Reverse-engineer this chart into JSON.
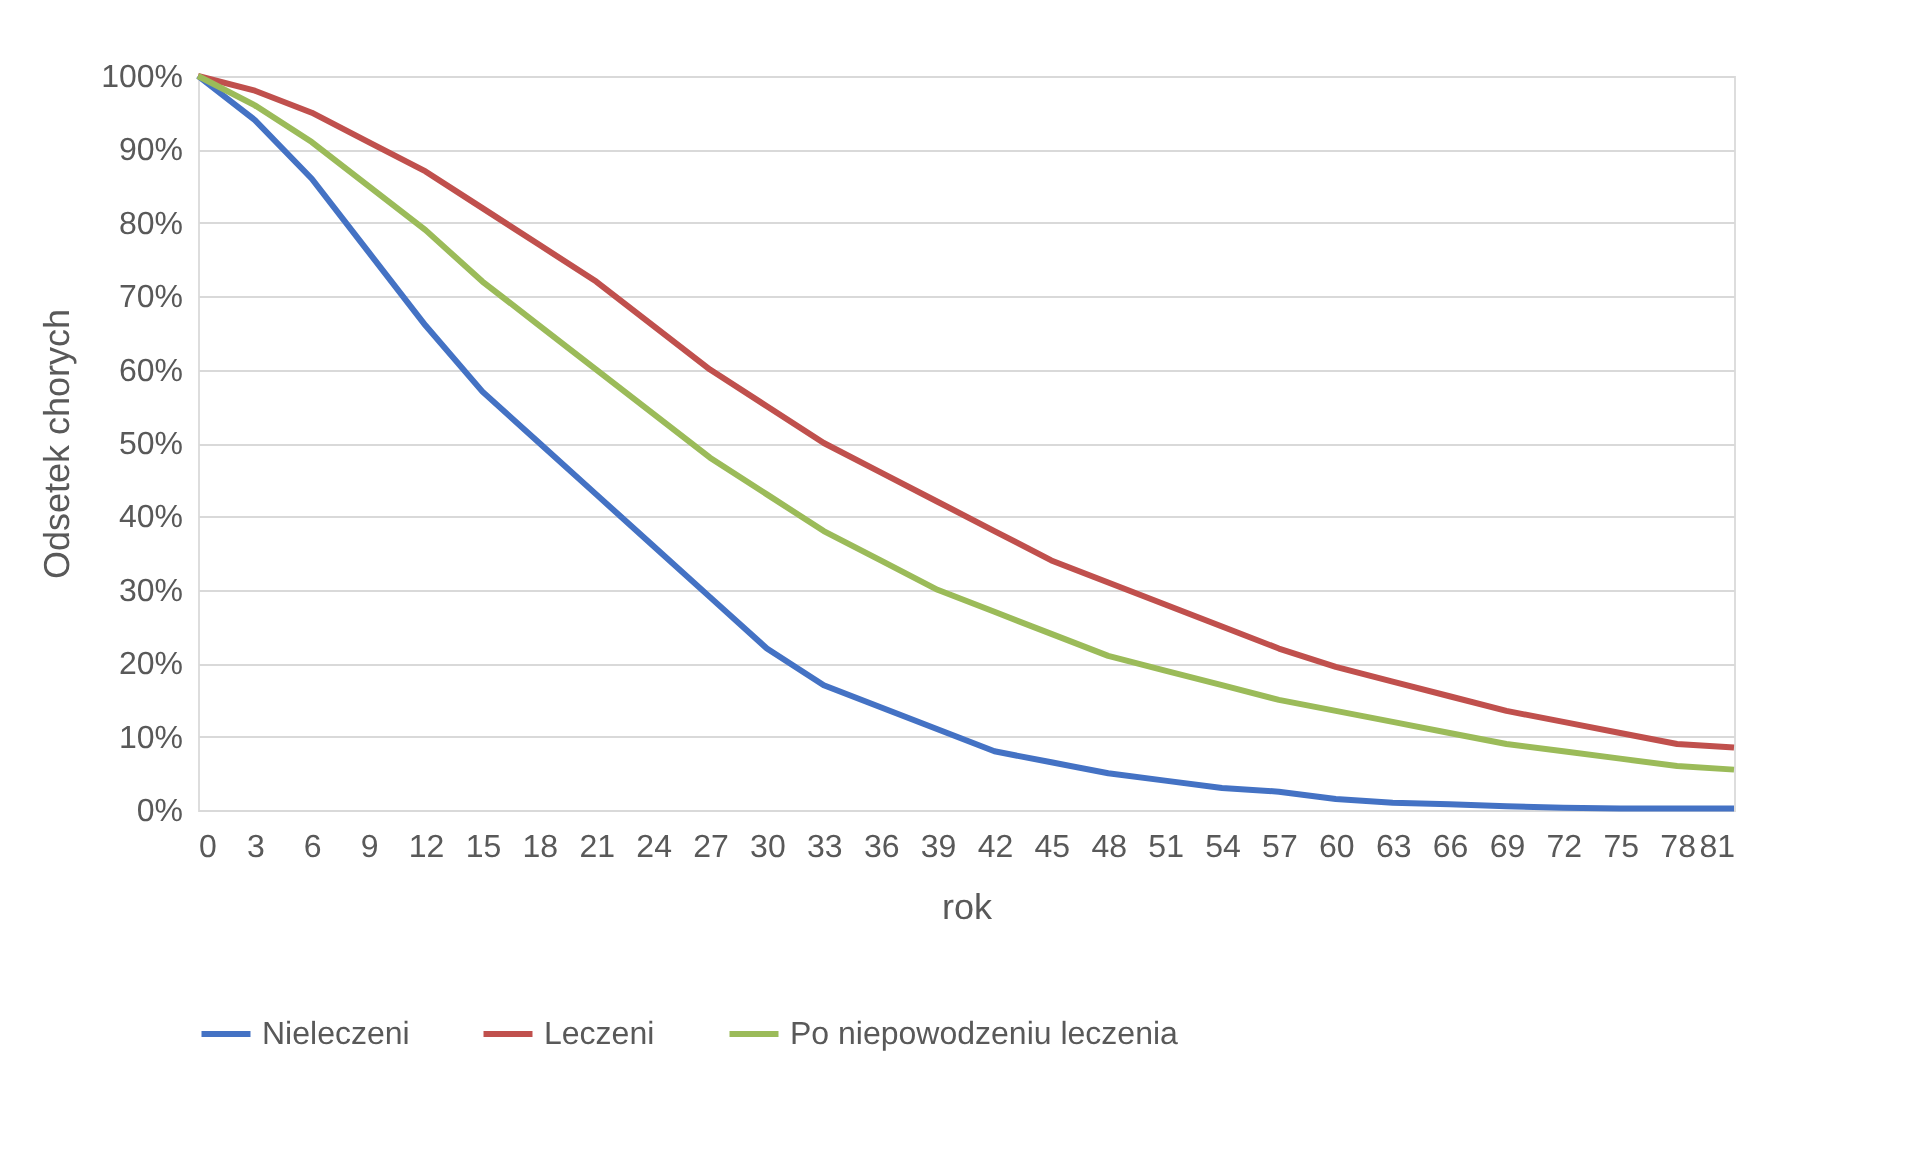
{
  "chart_data": {
    "type": "line",
    "xlabel": "rok",
    "ylabel": "Odsetek chorych",
    "x": [
      0,
      3,
      6,
      9,
      12,
      15,
      18,
      21,
      24,
      27,
      30,
      33,
      36,
      39,
      42,
      45,
      48,
      51,
      54,
      57,
      60,
      63,
      66,
      69,
      72,
      75,
      78,
      81
    ],
    "xlim": [
      0,
      81
    ],
    "xticks": [
      0,
      3,
      6,
      9,
      12,
      15,
      18,
      21,
      24,
      27,
      30,
      33,
      36,
      39,
      42,
      45,
      48,
      51,
      54,
      57,
      60,
      63,
      66,
      69,
      72,
      75,
      78,
      81
    ],
    "ylim": [
      0,
      100
    ],
    "yticks": [
      {
        "value": 0,
        "label": "0%"
      },
      {
        "value": 10,
        "label": "10%"
      },
      {
        "value": 20,
        "label": "20%"
      },
      {
        "value": 30,
        "label": "30%"
      },
      {
        "value": 40,
        "label": "40%"
      },
      {
        "value": 50,
        "label": "50%"
      },
      {
        "value": 60,
        "label": "60%"
      },
      {
        "value": 70,
        "label": "70%"
      },
      {
        "value": 80,
        "label": "80%"
      },
      {
        "value": 90,
        "label": "90%"
      },
      {
        "value": 100,
        "label": "100%"
      }
    ],
    "grid": "y",
    "legend": "bottom",
    "marker": "none",
    "line_style": "solid",
    "series": [
      {
        "name": "Nieleczeni",
        "color": "#4472c4",
        "values": [
          100,
          94,
          86,
          76,
          66,
          57,
          50,
          43,
          36,
          29,
          22,
          17,
          14,
          11,
          8,
          6.5,
          5,
          4,
          3,
          2.5,
          1.5,
          1,
          0.8,
          0.5,
          0.3,
          0.2,
          0.2,
          0.2
        ]
      },
      {
        "name": "Leczeni",
        "color": "#c0504d",
        "values": [
          100,
          98,
          95,
          91,
          87,
          82,
          77,
          72,
          66,
          60,
          55,
          50,
          46,
          42,
          38,
          34,
          31,
          28,
          25,
          22,
          19.5,
          17.5,
          15.5,
          13.5,
          12,
          10.5,
          9,
          8.5
        ]
      },
      {
        "name": "Po niepowodzeniu leczenia",
        "color": "#9bbb59",
        "values": [
          100,
          96,
          91,
          85,
          79,
          72,
          66,
          60,
          54,
          48,
          43,
          38,
          34,
          30,
          27,
          24,
          21,
          19,
          17,
          15,
          13.5,
          12,
          10.5,
          9,
          8,
          7,
          6,
          5.5
        ]
      }
    ]
  }
}
